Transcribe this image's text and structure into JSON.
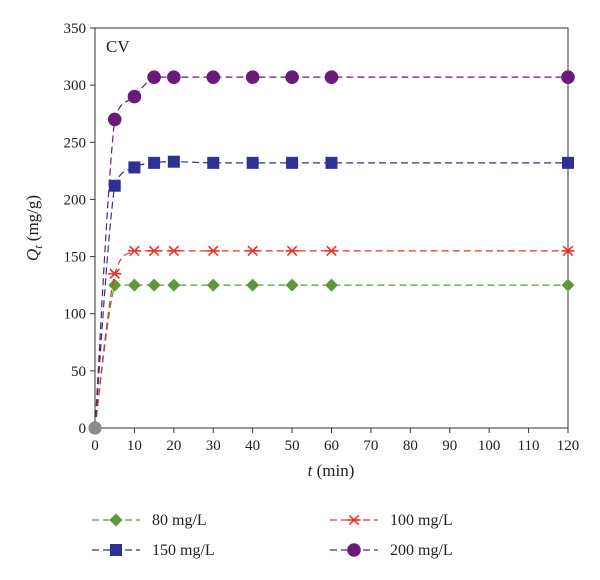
{
  "chart_data": {
    "type": "line",
    "annotation": "CV",
    "xlabel_var": "t",
    "xlabel_unit": " (min)",
    "ylabel_var": "Q",
    "ylabel_sub": "t",
    "ylabel_unit": " (mg/g)",
    "xlim": [
      0,
      120
    ],
    "ylim": [
      0,
      350
    ],
    "xticks": [
      0,
      10,
      20,
      30,
      40,
      50,
      60,
      70,
      80,
      90,
      100,
      110,
      120
    ],
    "yticks": [
      0,
      50,
      100,
      150,
      200,
      250,
      300,
      350
    ],
    "grid": false,
    "legend_position": "bottom",
    "series": [
      {
        "name": "80 mg/L",
        "marker": "diamond",
        "color": "#5b9a3a",
        "x": [
          0,
          5,
          10,
          15,
          20,
          30,
          40,
          50,
          60,
          120
        ],
        "y": [
          0,
          125,
          125,
          125,
          125,
          125,
          125,
          125,
          125,
          125
        ]
      },
      {
        "name": "100 mg/L",
        "marker": "asterisk",
        "color": "#e8302a",
        "x": [
          0,
          5,
          10,
          15,
          20,
          30,
          40,
          50,
          60,
          120
        ],
        "y": [
          0,
          135,
          155,
          155,
          155,
          155,
          155,
          155,
          155,
          155
        ]
      },
      {
        "name": "150 mg/L",
        "marker": "square",
        "color": "#2e3192",
        "x": [
          0,
          5,
          10,
          15,
          20,
          30,
          40,
          50,
          60,
          120
        ],
        "y": [
          0,
          212,
          228,
          232,
          233,
          232,
          232,
          232,
          232,
          232
        ]
      },
      {
        "name": "200 mg/L",
        "marker": "circle",
        "color": "#6a1b7a",
        "x": [
          0,
          5,
          10,
          15,
          20,
          30,
          40,
          50,
          60,
          120
        ],
        "y": [
          0,
          270,
          290,
          307,
          307,
          307,
          307,
          307,
          307,
          307
        ]
      }
    ]
  }
}
